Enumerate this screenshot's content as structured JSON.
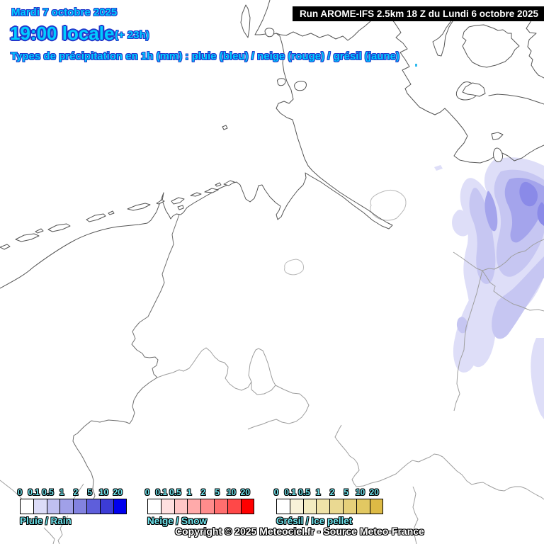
{
  "header": {
    "date": "Mardi 7 octobre 2025",
    "time": "19:00 locale",
    "offset": "(+ 23h)",
    "subtitle": "Types de précipitation en 1h (mm) : pluie (bleu) / neige (rouge) / grésil (jaune)",
    "run_info": "Run AROME-IFS 2.5km 18 Z du Lundi 6 octobre 2025"
  },
  "legends": [
    {
      "id": "rain",
      "title": "Pluie / Rain",
      "ticks": [
        "0",
        "0.1",
        "0.5",
        "1",
        "2",
        "5",
        "10",
        "20"
      ],
      "colors": [
        "#ffffff",
        "#dcdcf8",
        "#c0c0f0",
        "#a0a0e8",
        "#8282e0",
        "#5e5edb",
        "#3c3cd6",
        "#0000ee"
      ]
    },
    {
      "id": "snow",
      "title": "Neige / Snow",
      "ticks": [
        "0",
        "0.1",
        "0.5",
        "1",
        "2",
        "5",
        "10",
        "20"
      ],
      "colors": [
        "#ffffff",
        "#ffe0e0",
        "#ffc6c6",
        "#ffaaaa",
        "#ff8c8c",
        "#ff6e6e",
        "#ff4848",
        "#ff0000"
      ]
    },
    {
      "id": "ice",
      "title": "Grésil / Ice pellet",
      "ticks": [
        "0",
        "0.1",
        "0.5",
        "1",
        "2",
        "5",
        "10",
        "20"
      ],
      "colors": [
        "#ffffff",
        "#f8f2d8",
        "#f3ebc0",
        "#efe2a8",
        "#ead992",
        "#e6d07a",
        "#e2c862",
        "#ddba45"
      ]
    }
  ],
  "footer": {
    "copyright": "Copyright © 2025 Meteociel.fr - Source Meteo-France"
  },
  "map": {
    "precip_colors": {
      "light": "#dedef8",
      "medium": "#c6c6f2",
      "dark": "#a4a4ec",
      "core": "#8a8ae8"
    },
    "colors": {
      "title_text": "#00ccff",
      "title_outline": "#2238cc",
      "legend_text": "#6ee5ee",
      "run_box_bg": "#000000",
      "run_box_text": "#ffffff",
      "coastline": "#555555",
      "border": "#9e9e9e"
    }
  }
}
